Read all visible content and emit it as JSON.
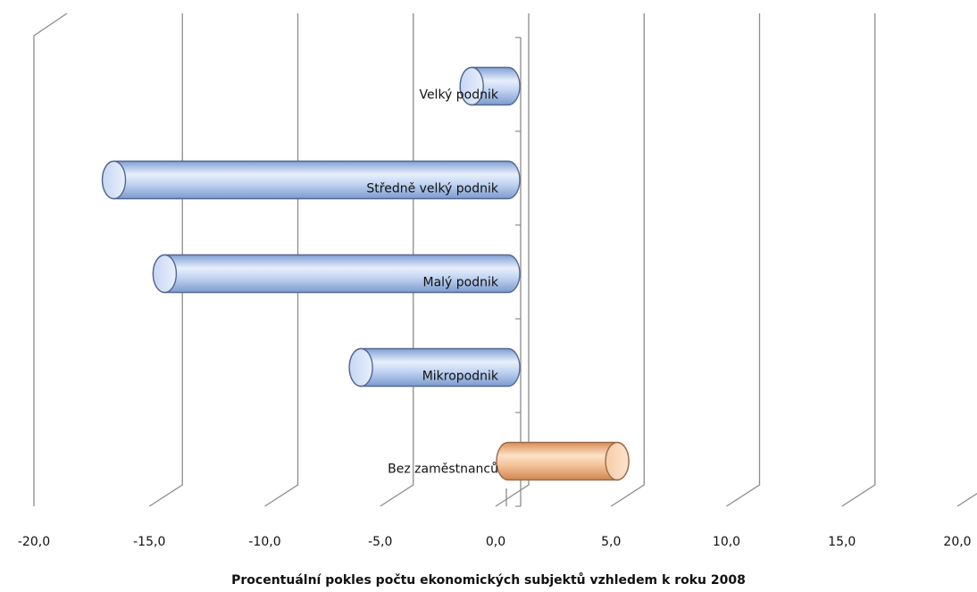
{
  "chart_data": {
    "type": "bar",
    "orientation": "horizontal",
    "three_d": true,
    "categories": [
      "Velký podnik",
      "Středně velký podnik",
      "Malý podnik",
      "Mikropodnik",
      "Bez zaměstnanců"
    ],
    "values": [
      -1.5,
      -17.0,
      -14.8,
      -6.3,
      4.8
    ],
    "xlim": [
      -20,
      20
    ],
    "x_ticks": [
      "-20,0",
      "-15,0",
      "-10,0",
      "-5,0",
      "0,0",
      "5,0",
      "10,0",
      "15,0",
      "20,0"
    ],
    "xlabel": "Procentuální pokles počtu ekonomických  subjektů vzhledem k roku 2008",
    "ylabel": "",
    "title": "",
    "grid": true,
    "legend": "none",
    "colors": {
      "negative": "#b9cdf0",
      "positive": "#f2b888",
      "grid": "#8c8c8c"
    }
  }
}
